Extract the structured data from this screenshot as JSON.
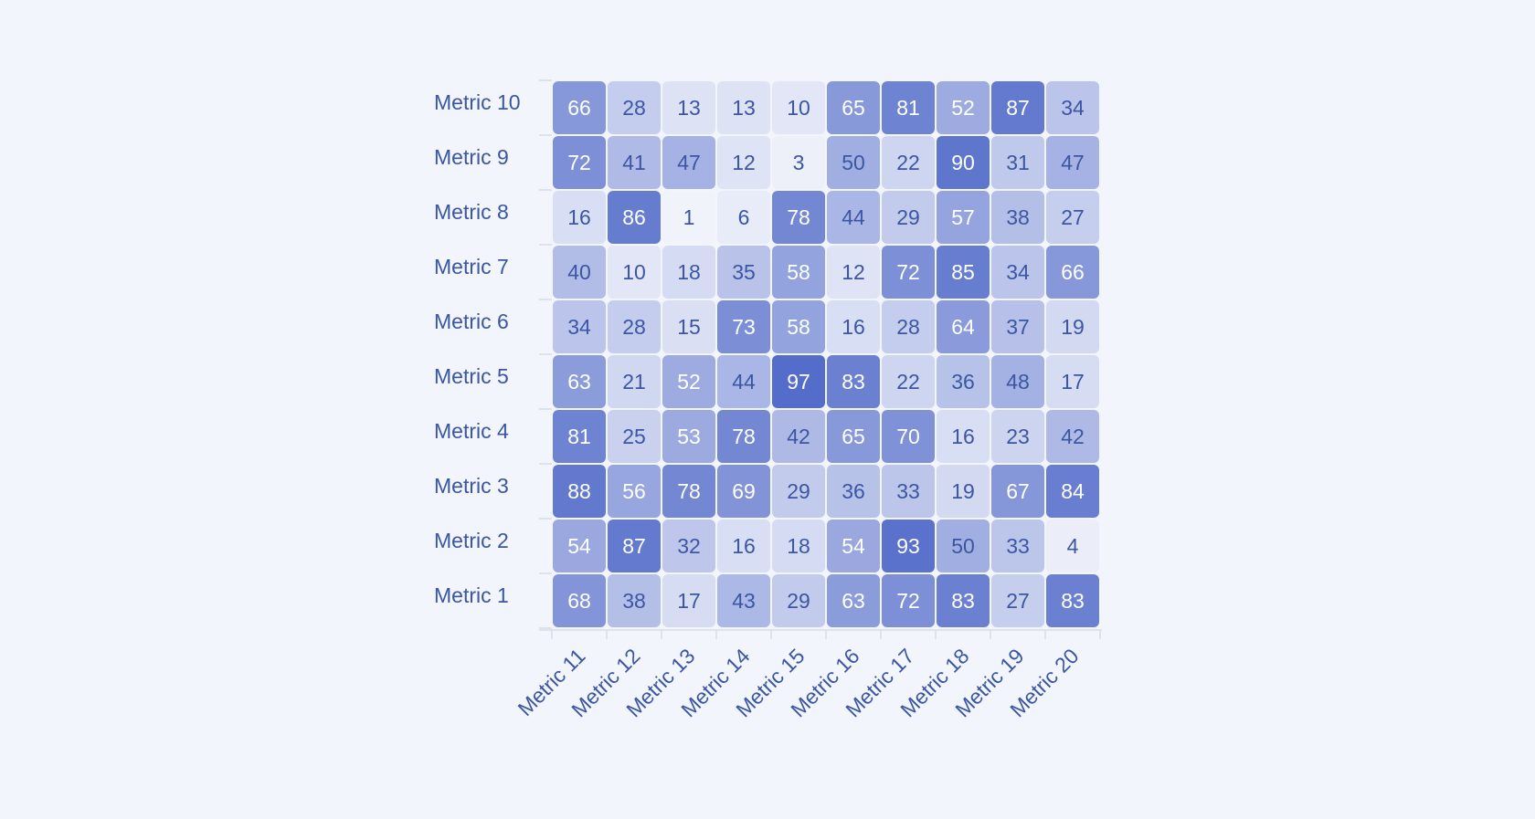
{
  "chart_data": {
    "type": "heatmap",
    "title": "",
    "xlabel": "",
    "ylabel": "",
    "x_categories": [
      "Metric 11",
      "Metric 12",
      "Metric 13",
      "Metric 14",
      "Metric 15",
      "Metric 16",
      "Metric 17",
      "Metric 18",
      "Metric 19",
      "Metric 20"
    ],
    "y_categories": [
      "Metric 10",
      "Metric 9",
      "Metric 8",
      "Metric 7",
      "Metric 6",
      "Metric 5",
      "Metric 4",
      "Metric 3",
      "Metric 2",
      "Metric 1"
    ],
    "values": [
      [
        66,
        28,
        13,
        13,
        10,
        65,
        81,
        52,
        87,
        34
      ],
      [
        72,
        41,
        47,
        12,
        3,
        50,
        22,
        90,
        31,
        47
      ],
      [
        16,
        86,
        1,
        6,
        78,
        44,
        29,
        57,
        38,
        27
      ],
      [
        40,
        10,
        18,
        35,
        58,
        12,
        72,
        85,
        34,
        66
      ],
      [
        34,
        28,
        15,
        73,
        58,
        16,
        28,
        64,
        37,
        19
      ],
      [
        63,
        21,
        52,
        44,
        97,
        83,
        22,
        36,
        48,
        17
      ],
      [
        81,
        25,
        53,
        78,
        42,
        65,
        70,
        16,
        23,
        42
      ],
      [
        88,
        56,
        78,
        69,
        29,
        36,
        33,
        19,
        67,
        84
      ],
      [
        54,
        87,
        32,
        16,
        18,
        54,
        93,
        50,
        33,
        4
      ],
      [
        68,
        38,
        17,
        43,
        29,
        63,
        72,
        83,
        27,
        83
      ]
    ],
    "color_range": [
      0,
      100
    ],
    "colors": {
      "background": "#f2f5fb",
      "low": "#f2f4fb",
      "high": "#4f68c8",
      "label": "#3b56a3",
      "label_light": "#ffffff",
      "axis": "#d9dce4"
    }
  }
}
